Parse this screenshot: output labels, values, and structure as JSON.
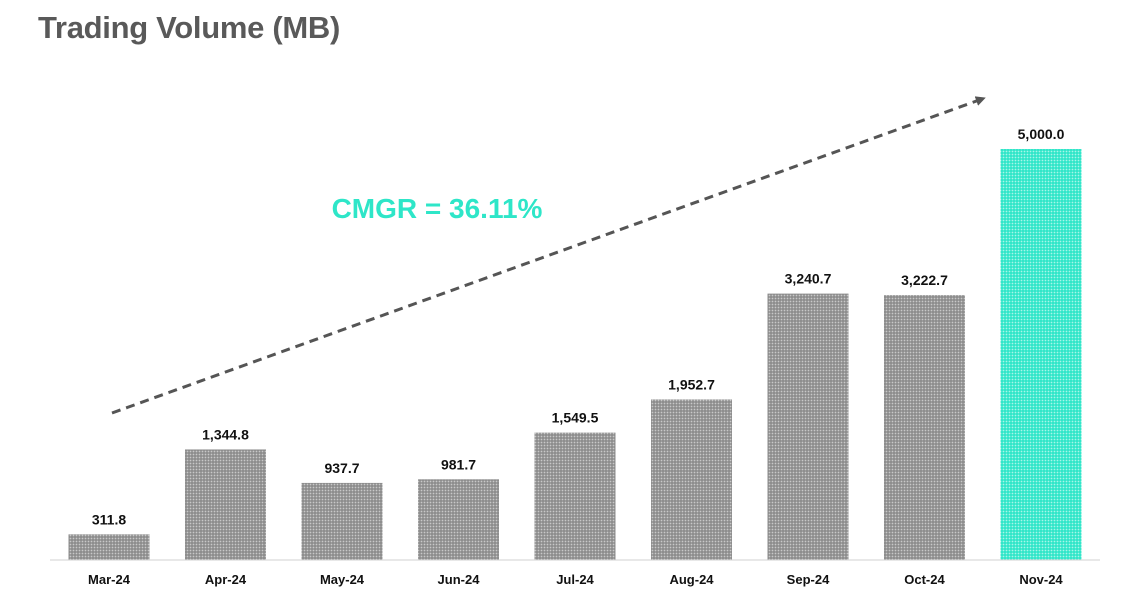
{
  "chart_data": {
    "type": "bar",
    "title": "Trading Volume (MB)",
    "categories": [
      "Mar-24",
      "Apr-24",
      "May-24",
      "Jun-24",
      "Jul-24",
      "Aug-24",
      "Sep-24",
      "Oct-24",
      "Nov-24"
    ],
    "values": [
      311.8,
      1344.8,
      937.7,
      981.7,
      1549.5,
      1952.7,
      3240.7,
      3222.7,
      5000.0
    ],
    "value_labels": [
      "311.8",
      "1,344.8",
      "937.7",
      "981.7",
      "1,549.5",
      "1,952.7",
      "3,240.7",
      "3,222.7",
      "5,000.0"
    ],
    "xlabel": "",
    "ylabel": "",
    "ylim": [
      0,
      5000
    ],
    "grid": false,
    "legend": "none",
    "annotation": "CMGR = 36.11%",
    "highlight_category": "Nov-24"
  },
  "colors": {
    "bar": "#8c8c8c",
    "highlight": "#2ee6c8",
    "annotation": "#2ee6c8",
    "arrow": "#555555",
    "title": "#595959"
  }
}
